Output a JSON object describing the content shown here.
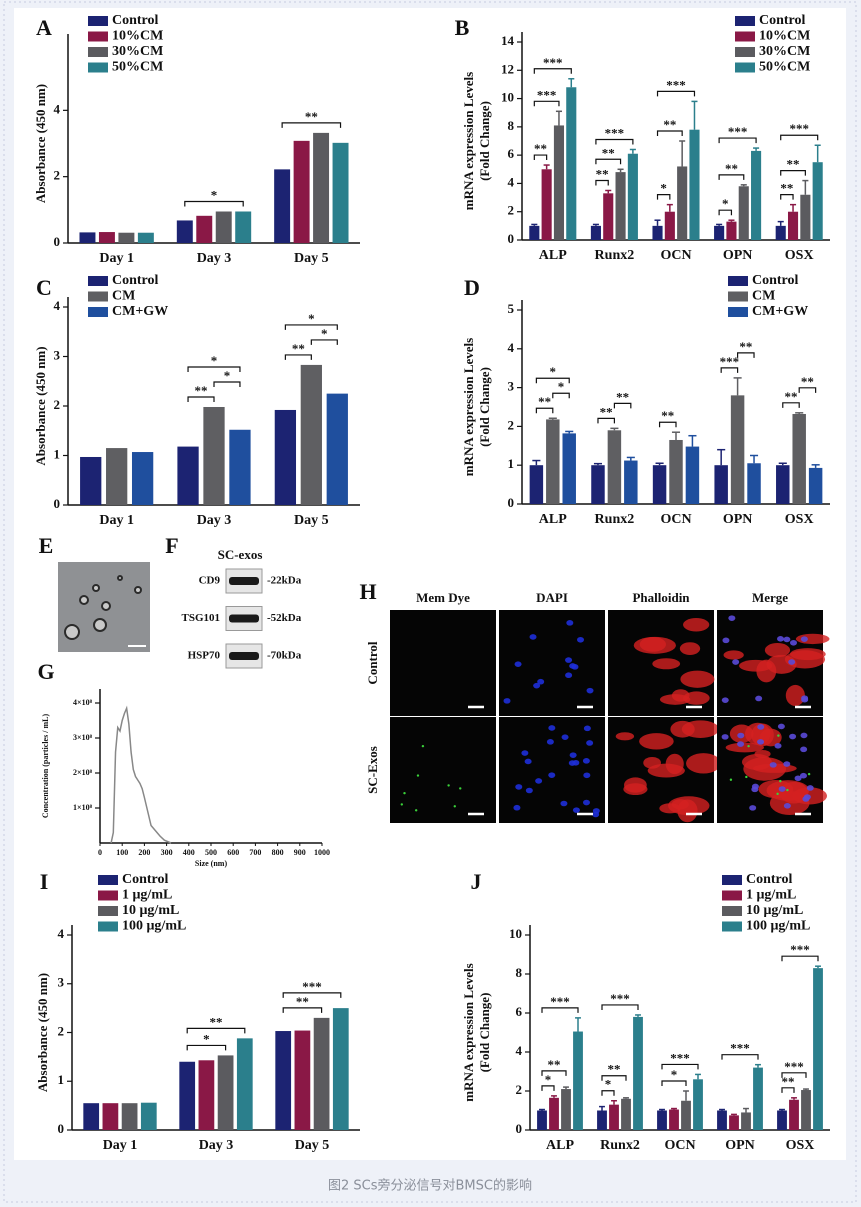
{
  "chart_data": [
    {
      "type": "bar",
      "panel": "A",
      "ylabel": [
        "Absorbance (450 nm)"
      ],
      "categories": [
        "Day 1",
        "Day 3",
        "Day 5"
      ],
      "series": [
        {
          "name": "Control",
          "color": "#1c2372",
          "values": [
            0.32,
            0.68,
            2.22
          ]
        },
        {
          "name": "10%CM",
          "color": "#8a1846",
          "values": [
            0.33,
            0.82,
            3.08
          ]
        },
        {
          "name": "30%CM",
          "color": "#5b5b5f",
          "values": [
            0.31,
            0.95,
            3.32
          ]
        },
        {
          "name": "50%CM",
          "color": "#2b7f8c",
          "values": [
            0.31,
            0.95,
            3.02
          ]
        }
      ],
      "ylim": [
        0,
        6
      ],
      "yticks": [
        0,
        2,
        4
      ],
      "annotations": [
        {
          "text": "*",
          "category": 1,
          "series": [
            0,
            3
          ]
        },
        {
          "text": "**",
          "category": 2,
          "series": [
            0,
            3
          ]
        }
      ]
    },
    {
      "type": "bar",
      "panel": "B",
      "ylabel": [
        "mRNA expression Levels",
        "(Fold Change)"
      ],
      "categories": [
        "ALP",
        "Runx2",
        "OCN",
        "OPN",
        "OSX"
      ],
      "series": [
        {
          "name": "Control",
          "color": "#1c2372",
          "values": [
            1,
            1,
            1,
            1,
            1
          ],
          "errors": [
            0.1,
            0.1,
            0.4,
            0.1,
            0.3
          ]
        },
        {
          "name": "10%CM",
          "color": "#8a1846",
          "values": [
            5.0,
            3.3,
            2.0,
            1.3,
            2.0
          ],
          "errors": [
            0.3,
            0.2,
            0.5,
            0.1,
            0.5
          ]
        },
        {
          "name": "30%CM",
          "color": "#5b5b5f",
          "values": [
            8.1,
            4.8,
            5.2,
            3.8,
            3.2
          ],
          "errors": [
            1.0,
            0.2,
            1.8,
            0.1,
            1.0
          ]
        },
        {
          "name": "50%CM",
          "color": "#2b7f8c",
          "values": [
            10.8,
            6.1,
            7.8,
            6.3,
            5.5
          ],
          "errors": [
            0.6,
            0.3,
            2.0,
            0.2,
            1.2
          ]
        }
      ],
      "ylim": [
        0,
        14
      ],
      "yticks": [
        0,
        2,
        4,
        6,
        8,
        10,
        12,
        14
      ],
      "annotations": [
        {
          "text": "**",
          "category": 0,
          "series": [
            0,
            1
          ]
        },
        {
          "text": "***",
          "category": 0,
          "series": [
            0,
            2
          ]
        },
        {
          "text": "***",
          "category": 0,
          "series": [
            0,
            3
          ]
        },
        {
          "text": "**",
          "category": 1,
          "series": [
            0,
            1
          ]
        },
        {
          "text": "**",
          "category": 1,
          "series": [
            0,
            2
          ]
        },
        {
          "text": "***",
          "category": 1,
          "series": [
            0,
            3
          ]
        },
        {
          "text": "*",
          "category": 2,
          "series": [
            0,
            1
          ]
        },
        {
          "text": "**",
          "category": 2,
          "series": [
            0,
            2
          ]
        },
        {
          "text": "***",
          "category": 2,
          "series": [
            0,
            3
          ]
        },
        {
          "text": "*",
          "category": 3,
          "series": [
            0,
            1
          ]
        },
        {
          "text": "**",
          "category": 3,
          "series": [
            0,
            2
          ]
        },
        {
          "text": "***",
          "category": 3,
          "series": [
            0,
            3
          ]
        },
        {
          "text": "**",
          "category": 4,
          "series": [
            0,
            1
          ]
        },
        {
          "text": "**",
          "category": 4,
          "series": [
            0,
            2
          ]
        },
        {
          "text": "***",
          "category": 4,
          "series": [
            0,
            3
          ]
        }
      ]
    },
    {
      "type": "bar",
      "panel": "C",
      "ylabel": [
        "Absorbance (450 nm)"
      ],
      "categories": [
        "Day 1",
        "Day 3",
        "Day 5"
      ],
      "series": [
        {
          "name": "Control",
          "color": "#1c2372",
          "values": [
            0.97,
            1.18,
            1.92
          ]
        },
        {
          "name": "CM",
          "color": "#5f5f62",
          "values": [
            1.15,
            1.98,
            2.83
          ]
        },
        {
          "name": "CM+GW",
          "color": "#1f4f9e",
          "values": [
            1.07,
            1.52,
            2.25
          ]
        }
      ],
      "ylim": [
        0,
        4
      ],
      "yticks": [
        0,
        1,
        2,
        3,
        4
      ],
      "annotations": [
        {
          "text": "**",
          "category": 1,
          "series": [
            0,
            1
          ]
        },
        {
          "text": "*",
          "category": 1,
          "series": [
            1,
            2
          ]
        },
        {
          "text": "*",
          "category": 1,
          "series": [
            0,
            2
          ]
        },
        {
          "text": "**",
          "category": 2,
          "series": [
            0,
            1
          ]
        },
        {
          "text": "*",
          "category": 2,
          "series": [
            1,
            2
          ]
        },
        {
          "text": "*",
          "category": 2,
          "series": [
            0,
            2
          ]
        }
      ]
    },
    {
      "type": "bar",
      "panel": "D",
      "ylabel": [
        "mRNA expression Levels",
        "(Fold Change)"
      ],
      "categories": [
        "ALP",
        "Runx2",
        "OCN",
        "OPN",
        "OSX"
      ],
      "series": [
        {
          "name": "Control",
          "color": "#1c2372",
          "values": [
            1,
            1,
            1,
            1,
            1
          ],
          "errors": [
            0.12,
            0.04,
            0.05,
            0.4,
            0.05
          ]
        },
        {
          "name": "CM",
          "color": "#5f5f62",
          "values": [
            2.18,
            1.9,
            1.65,
            2.8,
            2.32
          ],
          "errors": [
            0.03,
            0.05,
            0.2,
            0.45,
            0.03
          ]
        },
        {
          "name": "CM+GW",
          "color": "#1f4f9e",
          "values": [
            1.82,
            1.12,
            1.48,
            1.05,
            0.93
          ],
          "errors": [
            0.05,
            0.08,
            0.28,
            0.2,
            0.08
          ]
        }
      ],
      "ylim": [
        0,
        5
      ],
      "yticks": [
        0,
        1,
        2,
        3,
        4,
        5
      ],
      "annotations": [
        {
          "text": "**",
          "category": 0,
          "series": [
            0,
            1
          ]
        },
        {
          "text": "*",
          "category": 0,
          "series": [
            1,
            2
          ]
        },
        {
          "text": "*",
          "category": 0,
          "series": [
            0,
            2
          ]
        },
        {
          "text": "**",
          "category": 1,
          "series": [
            0,
            1
          ]
        },
        {
          "text": "**",
          "category": 1,
          "series": [
            1,
            2
          ]
        },
        {
          "text": "**",
          "category": 2,
          "series": [
            0,
            1
          ]
        },
        {
          "text": "***",
          "category": 3,
          "series": [
            0,
            1
          ]
        },
        {
          "text": "**",
          "category": 3,
          "series": [
            1,
            2
          ]
        },
        {
          "text": "**",
          "category": 4,
          "series": [
            0,
            1
          ]
        },
        {
          "text": "**",
          "category": 4,
          "series": [
            1,
            2
          ]
        }
      ]
    },
    {
      "type": "line",
      "panel": "G",
      "xlabel": "Size (nm)",
      "ylabel": [
        "Concentration (particles / mL)"
      ],
      "color": "#888888",
      "x": [
        50,
        60,
        70,
        80,
        90,
        100,
        110,
        120,
        130,
        140,
        150,
        160,
        170,
        180,
        190,
        200,
        215,
        230,
        250,
        270,
        290,
        320
      ],
      "values": [
        0,
        30000000,
        260000000,
        330000000,
        320000000,
        350000000,
        370000000,
        385000000,
        340000000,
        260000000,
        210000000,
        190000000,
        180000000,
        170000000,
        155000000,
        130000000,
        90000000,
        50000000,
        35000000,
        20000000,
        8000000,
        0
      ],
      "xlim": [
        0,
        1000
      ],
      "xticks": [
        0,
        100,
        200,
        300,
        400,
        500,
        600,
        700,
        800,
        900,
        1000
      ],
      "ylim": [
        0,
        440000000
      ],
      "yticks": [
        {
          "value": 100000000,
          "label": "1×10⁸"
        },
        {
          "value": 200000000,
          "label": "2×10⁸"
        },
        {
          "value": 300000000,
          "label": "3×10⁸"
        },
        {
          "value": 400000000,
          "label": "4×10⁸"
        }
      ]
    },
    {
      "type": "bar",
      "panel": "I",
      "ylabel": [
        "Absorbance (450 nm)"
      ],
      "categories": [
        "Day 1",
        "Day 3",
        "Day 5"
      ],
      "series": [
        {
          "name": "Control",
          "color": "#1c2372",
          "values": [
            0.55,
            1.4,
            2.03
          ]
        },
        {
          "name": "1 μg/mL",
          "color": "#8a1846",
          "values": [
            0.55,
            1.43,
            2.04
          ]
        },
        {
          "name": "10 μg/mL",
          "color": "#5b5b5f",
          "values": [
            0.55,
            1.53,
            2.3
          ]
        },
        {
          "name": "100 μg/mL",
          "color": "#2b7f8c",
          "values": [
            0.56,
            1.88,
            2.5
          ]
        }
      ],
      "ylim": [
        0,
        4
      ],
      "yticks": [
        0,
        1,
        2,
        3,
        4
      ],
      "annotations": [
        {
          "text": "*",
          "category": 1,
          "series": [
            0,
            2
          ]
        },
        {
          "text": "**",
          "category": 1,
          "series": [
            0,
            3
          ]
        },
        {
          "text": "**",
          "category": 2,
          "series": [
            0,
            2
          ]
        },
        {
          "text": "***",
          "category": 2,
          "series": [
            0,
            3
          ]
        }
      ]
    },
    {
      "type": "bar",
      "panel": "J",
      "ylabel": [
        "mRNA expression Levels",
        "(Fold Change)"
      ],
      "categories": [
        "ALP",
        "Runx2",
        "OCN",
        "OPN",
        "OSX"
      ],
      "series": [
        {
          "name": "Control",
          "color": "#1c2372",
          "values": [
            1,
            1,
            1,
            1,
            1
          ],
          "errors": [
            0.05,
            0.2,
            0.05,
            0.05,
            0.05
          ]
        },
        {
          "name": "1 μg/mL",
          "color": "#8a1846",
          "values": [
            1.65,
            1.3,
            1.05,
            0.75,
            1.55
          ],
          "errors": [
            0.1,
            0.2,
            0.05,
            0.05,
            0.1
          ]
        },
        {
          "name": "10 μg/mL",
          "color": "#5b5b5f",
          "values": [
            2.1,
            1.6,
            1.5,
            0.9,
            2.05
          ],
          "errors": [
            0.1,
            0.05,
            0.5,
            0.2,
            0.05
          ]
        },
        {
          "name": "100 μg/mL",
          "color": "#2b7f8c",
          "values": [
            5.05,
            5.8,
            2.6,
            3.2,
            8.3
          ],
          "errors": [
            0.7,
            0.1,
            0.25,
            0.15,
            0.1
          ]
        }
      ],
      "ylim": [
        0,
        10
      ],
      "yticks": [
        0,
        2,
        4,
        6,
        8,
        10
      ],
      "annotations": [
        {
          "text": "*",
          "category": 0,
          "series": [
            0,
            1
          ]
        },
        {
          "text": "**",
          "category": 0,
          "series": [
            0,
            2
          ]
        },
        {
          "text": "***",
          "category": 0,
          "series": [
            0,
            3
          ]
        },
        {
          "text": "*",
          "category": 1,
          "series": [
            0,
            1
          ]
        },
        {
          "text": "**",
          "category": 1,
          "series": [
            0,
            2
          ]
        },
        {
          "text": "***",
          "category": 1,
          "series": [
            0,
            3
          ]
        },
        {
          "text": "*",
          "category": 2,
          "series": [
            0,
            2
          ]
        },
        {
          "text": "***",
          "category": 2,
          "series": [
            0,
            3
          ]
        },
        {
          "text": "***",
          "category": 3,
          "series": [
            0,
            3
          ]
        },
        {
          "text": "**",
          "category": 4,
          "series": [
            0,
            1
          ]
        },
        {
          "text": "***",
          "category": 4,
          "series": [
            0,
            2
          ]
        },
        {
          "text": "***",
          "category": 4,
          "series": [
            0,
            3
          ]
        }
      ]
    }
  ],
  "figure_e": {
    "label": "E"
  },
  "figure_f": {
    "label": "F",
    "title": "SC-exos",
    "blots": [
      {
        "protein": "CD9",
        "size": "-22kDa"
      },
      {
        "protein": "TSG101",
        "size": "-52kDa"
      },
      {
        "protein": "HSP70",
        "size": "-70kDa"
      }
    ]
  },
  "figure_h": {
    "label": "H",
    "columns": [
      "Mem Dye",
      "DAPI",
      "Phalloidin",
      "Merge"
    ],
    "rows": [
      "Control",
      "SC-Exos"
    ]
  },
  "caption": "图2 SCs旁分泌信号对BMSC的影响"
}
